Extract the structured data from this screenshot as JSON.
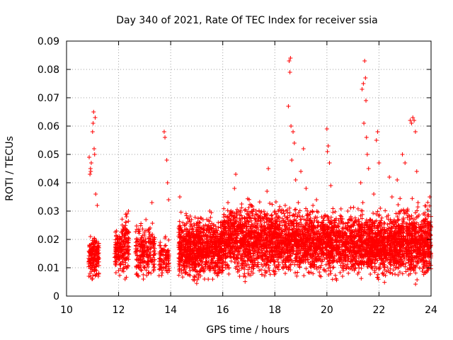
{
  "chart_data": {
    "type": "scatter",
    "title": "Day 340 of 2021, Rate Of TEC Index for receiver ssia",
    "xlabel": "GPS time / hours",
    "ylabel": "ROTI / TECUs",
    "xlim": [
      10,
      24
    ],
    "ylim": [
      0,
      0.09
    ],
    "x_ticks": [
      10,
      12,
      14,
      16,
      18,
      20,
      22,
      24
    ],
    "x_tick_labels": [
      "10",
      "12",
      "14",
      "16",
      "18",
      "20",
      "22",
      "24"
    ],
    "y_ticks": [
      0,
      0.01,
      0.02,
      0.03,
      0.04,
      0.05,
      0.06,
      0.07,
      0.08,
      0.09
    ],
    "y_tick_labels": [
      "0",
      "0.01",
      "0.02",
      "0.03",
      "0.04",
      "0.05",
      "0.06",
      "0.07",
      "0.08",
      "0.09"
    ],
    "grid": true,
    "marker": "plus",
    "color": "#ff0000",
    "series": [
      {
        "points": [
          [
            10.85,
            0.012
          ],
          [
            10.88,
            0.018
          ],
          [
            10.9,
            0.008
          ],
          [
            10.92,
            0.021
          ],
          [
            10.95,
            0.014
          ],
          [
            10.98,
            0.006
          ],
          [
            11.0,
            0.017
          ],
          [
            11.05,
            0.011
          ],
          [
            11.1,
            0.019
          ],
          [
            11.15,
            0.009
          ],
          [
            11.2,
            0.015
          ],
          [
            11.22,
            0.007
          ],
          [
            10.9,
            0.043
          ],
          [
            10.92,
            0.045
          ],
          [
            10.95,
            0.047
          ],
          [
            11.0,
            0.058
          ],
          [
            11.02,
            0.061
          ],
          [
            11.04,
            0.065
          ],
          [
            11.06,
            0.052
          ],
          [
            11.08,
            0.05
          ],
          [
            11.1,
            0.063
          ],
          [
            11.12,
            0.036
          ],
          [
            11.18,
            0.032
          ],
          [
            10.87,
            0.049
          ],
          [
            10.93,
            0.044
          ],
          [
            11.85,
            0.015
          ],
          [
            11.9,
            0.011
          ],
          [
            11.95,
            0.021
          ],
          [
            12.0,
            0.009
          ],
          [
            12.05,
            0.017
          ],
          [
            11.92,
            0.023
          ],
          [
            12.02,
            0.013
          ],
          [
            12.15,
            0.012
          ],
          [
            12.2,
            0.019
          ],
          [
            12.25,
            0.006
          ],
          [
            12.3,
            0.028
          ],
          [
            12.35,
            0.022
          ],
          [
            12.38,
            0.03
          ],
          [
            12.28,
            0.026
          ],
          [
            12.32,
            0.01
          ],
          [
            12.22,
            0.015
          ],
          [
            12.7,
            0.008
          ],
          [
            12.8,
            0.014
          ],
          [
            12.9,
            0.019
          ],
          [
            13.0,
            0.01
          ],
          [
            13.05,
            0.027
          ],
          [
            13.1,
            0.016
          ],
          [
            12.95,
            0.006
          ],
          [
            13.15,
            0.012
          ],
          [
            13.25,
            0.017
          ],
          [
            13.3,
            0.021
          ],
          [
            13.35,
            0.009
          ],
          [
            13.28,
            0.033
          ],
          [
            13.6,
            0.011
          ],
          [
            13.7,
            0.016
          ],
          [
            13.75,
            0.058
          ],
          [
            13.78,
            0.056
          ],
          [
            13.85,
            0.048
          ],
          [
            13.88,
            0.04
          ],
          [
            13.9,
            0.013
          ],
          [
            13.95,
            0.009
          ],
          [
            13.8,
            0.021
          ],
          [
            13.92,
            0.034
          ],
          [
            14.35,
            0.035
          ],
          [
            14.4,
            0.015
          ],
          [
            14.5,
            0.009
          ],
          [
            14.6,
            0.022
          ],
          [
            14.7,
            0.013
          ],
          [
            14.8,
            0.027
          ],
          [
            14.9,
            0.007
          ],
          [
            15.0,
            0.018
          ],
          [
            15.1,
            0.011
          ],
          [
            15.2,
            0.024
          ],
          [
            15.3,
            0.006
          ],
          [
            15.4,
            0.017
          ],
          [
            15.5,
            0.03
          ],
          [
            15.6,
            0.012
          ],
          [
            15.7,
            0.02
          ],
          [
            15.8,
            0.008
          ],
          [
            15.9,
            0.016
          ],
          [
            16.0,
            0.021
          ],
          [
            16.1,
            0.01
          ],
          [
            16.2,
            0.033
          ],
          [
            16.3,
            0.014
          ],
          [
            16.4,
            0.025
          ],
          [
            16.45,
            0.038
          ],
          [
            16.5,
            0.043
          ],
          [
            16.55,
            0.029
          ],
          [
            16.6,
            0.012
          ],
          [
            16.7,
            0.019
          ],
          [
            16.8,
            0.007
          ],
          [
            16.9,
            0.026
          ],
          [
            17.0,
            0.015
          ],
          [
            17.1,
            0.032
          ],
          [
            17.2,
            0.011
          ],
          [
            17.3,
            0.02
          ],
          [
            17.4,
            0.009
          ],
          [
            17.5,
            0.017
          ],
          [
            17.6,
            0.028
          ],
          [
            17.7,
            0.037
          ],
          [
            17.75,
            0.045
          ],
          [
            17.8,
            0.024
          ],
          [
            17.9,
            0.013
          ],
          [
            18.0,
            0.03
          ],
          [
            18.1,
            0.01
          ],
          [
            18.2,
            0.022
          ],
          [
            18.3,
            0.016
          ],
          [
            18.4,
            0.008
          ],
          [
            18.55,
            0.083
          ],
          [
            18.6,
            0.084
          ],
          [
            18.58,
            0.079
          ],
          [
            18.52,
            0.067
          ],
          [
            18.62,
            0.06
          ],
          [
            18.65,
            0.048
          ],
          [
            18.7,
            0.058
          ],
          [
            18.75,
            0.054
          ],
          [
            18.8,
            0.041
          ],
          [
            18.5,
            0.019
          ],
          [
            18.6,
            0.013
          ],
          [
            18.7,
            0.026
          ],
          [
            18.9,
            0.033
          ],
          [
            19.0,
            0.044
          ],
          [
            19.1,
            0.052
          ],
          [
            19.2,
            0.038
          ],
          [
            19.3,
            0.02
          ],
          [
            19.4,
            0.011
          ],
          [
            19.5,
            0.025
          ],
          [
            19.6,
            0.034
          ],
          [
            19.7,
            0.015
          ],
          [
            19.8,
            0.028
          ],
          [
            19.9,
            0.009
          ],
          [
            20.0,
            0.059
          ],
          [
            20.05,
            0.053
          ],
          [
            20.1,
            0.047
          ],
          [
            20.15,
            0.039
          ],
          [
            20.02,
            0.051
          ],
          [
            20.2,
            0.017
          ],
          [
            20.3,
            0.026
          ],
          [
            20.4,
            0.012
          ],
          [
            20.5,
            0.022
          ],
          [
            20.6,
            0.007
          ],
          [
            20.7,
            0.018
          ],
          [
            20.8,
            0.03
          ],
          [
            20.9,
            0.014
          ],
          [
            21.0,
            0.023
          ],
          [
            21.1,
            0.01
          ],
          [
            21.3,
            0.04
          ],
          [
            21.35,
            0.073
          ],
          [
            21.4,
            0.075
          ],
          [
            21.45,
            0.083
          ],
          [
            21.48,
            0.077
          ],
          [
            21.5,
            0.069
          ],
          [
            21.42,
            0.061
          ],
          [
            21.52,
            0.056
          ],
          [
            21.55,
            0.05
          ],
          [
            21.6,
            0.045
          ],
          [
            21.38,
            0.033
          ],
          [
            21.65,
            0.027
          ],
          [
            21.7,
            0.019
          ],
          [
            21.8,
            0.036
          ],
          [
            21.9,
            0.055
          ],
          [
            21.95,
            0.058
          ],
          [
            22.0,
            0.047
          ],
          [
            22.05,
            0.031
          ],
          [
            22.1,
            0.021
          ],
          [
            22.2,
            0.012
          ],
          [
            22.3,
            0.028
          ],
          [
            22.4,
            0.042
          ],
          [
            22.5,
            0.035
          ],
          [
            22.6,
            0.018
          ],
          [
            22.7,
            0.041
          ],
          [
            22.8,
            0.024
          ],
          [
            22.9,
            0.05
          ],
          [
            23.0,
            0.047
          ],
          [
            23.1,
            0.03
          ],
          [
            23.2,
            0.062
          ],
          [
            23.25,
            0.061
          ],
          [
            23.3,
            0.063
          ],
          [
            23.35,
            0.062
          ],
          [
            23.4,
            0.058
          ],
          [
            23.45,
            0.044
          ],
          [
            23.5,
            0.033
          ],
          [
            23.6,
            0.021
          ],
          [
            23.7,
            0.029
          ],
          [
            23.8,
            0.015
          ],
          [
            23.9,
            0.025
          ],
          [
            23.95,
            0.035
          ],
          [
            23.85,
            0.009
          ],
          [
            23.75,
            0.012
          ]
        ],
        "bands": [
          [
            10.85,
            11.25,
            0.005,
            0.023,
            160
          ],
          [
            11.85,
            12.1,
            0.006,
            0.026,
            90
          ],
          [
            12.12,
            12.4,
            0.004,
            0.031,
            110
          ],
          [
            12.65,
            13.4,
            0.004,
            0.028,
            220
          ],
          [
            13.55,
            13.95,
            0.005,
            0.022,
            90
          ],
          [
            14.3,
            16.0,
            0.003,
            0.031,
            950
          ],
          [
            16.0,
            18.5,
            0.004,
            0.036,
            1300
          ],
          [
            18.5,
            21.3,
            0.004,
            0.034,
            1350
          ],
          [
            21.3,
            22.6,
            0.004,
            0.032,
            700
          ],
          [
            22.6,
            24.0,
            0.003,
            0.035,
            800
          ]
        ]
      }
    ]
  }
}
